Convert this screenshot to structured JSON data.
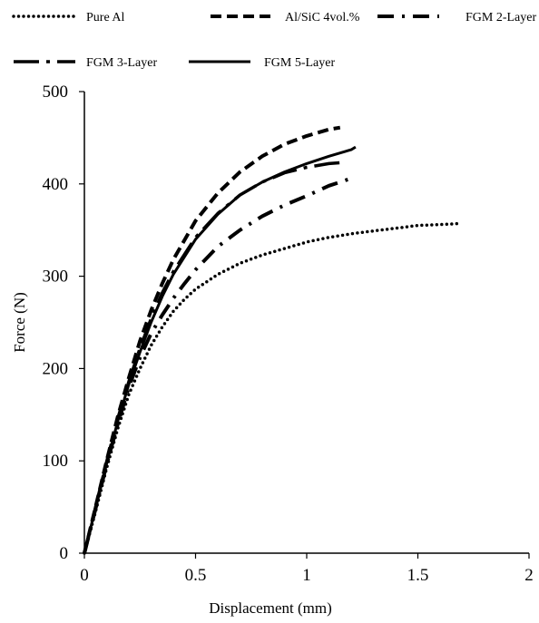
{
  "chart_data": {
    "type": "line",
    "title": "",
    "xlabel": "Displacement (mm)",
    "ylabel": "Force (N)",
    "xlim": [
      0,
      2
    ],
    "ylim": [
      0,
      500
    ],
    "xticks": [
      0,
      0.5,
      1,
      1.5,
      2
    ],
    "xtick_labels": [
      "0",
      "0.5",
      "1",
      "1.5",
      "2"
    ],
    "yticks": [
      0,
      100,
      200,
      300,
      400,
      500
    ],
    "ytick_labels": [
      "0",
      "100",
      "200",
      "300",
      "400",
      "500"
    ],
    "grid": false,
    "legend_position": "top",
    "series": [
      {
        "name": "Pure Al",
        "style": "dotted",
        "x": [
          0,
          0.05,
          0.1,
          0.15,
          0.2,
          0.25,
          0.3,
          0.35,
          0.4,
          0.45,
          0.5,
          0.6,
          0.7,
          0.8,
          0.9,
          1.0,
          1.1,
          1.2,
          1.3,
          1.4,
          1.5,
          1.6,
          1.68
        ],
        "y": [
          0,
          45,
          92,
          135,
          172,
          200,
          225,
          245,
          262,
          275,
          286,
          302,
          314,
          323,
          330,
          337,
          342,
          346,
          349,
          352,
          355,
          356,
          357
        ]
      },
      {
        "name": "Al/SiC 4vol.%",
        "style": "dashed",
        "x": [
          0,
          0.05,
          0.1,
          0.15,
          0.2,
          0.25,
          0.3,
          0.35,
          0.4,
          0.5,
          0.6,
          0.7,
          0.8,
          0.9,
          1.0,
          1.1,
          1.15
        ],
        "y": [
          0,
          50,
          100,
          148,
          190,
          230,
          263,
          292,
          318,
          360,
          390,
          413,
          430,
          443,
          452,
          459,
          461
        ]
      },
      {
        "name": "FGM 2-Layer",
        "style": "dash-dot",
        "x": [
          0,
          0.05,
          0.1,
          0.15,
          0.2,
          0.25,
          0.3,
          0.35,
          0.4,
          0.45,
          0.5,
          0.6,
          0.7,
          0.8,
          0.9,
          1.0,
          1.1,
          1.15,
          1.2
        ],
        "y": [
          0,
          48,
          96,
          140,
          180,
          212,
          238,
          258,
          276,
          292,
          307,
          332,
          350,
          365,
          377,
          387,
          398,
          402,
          406
        ]
      },
      {
        "name": "FGM 3-Layer",
        "style": "long-dash-dot",
        "x": [
          0,
          0.05,
          0.1,
          0.15,
          0.2,
          0.25,
          0.3,
          0.35,
          0.4,
          0.5,
          0.6,
          0.7,
          0.8,
          0.9,
          1.0,
          1.1,
          1.15
        ],
        "y": [
          0,
          50,
          99,
          146,
          186,
          222,
          254,
          282,
          305,
          342,
          368,
          388,
          402,
          412,
          418,
          422,
          423
        ]
      },
      {
        "name": "FGM 5-Layer",
        "style": "solid",
        "x": [
          0,
          0.05,
          0.1,
          0.15,
          0.2,
          0.25,
          0.3,
          0.35,
          0.4,
          0.5,
          0.6,
          0.7,
          0.8,
          0.9,
          1.0,
          1.1,
          1.2,
          1.22
        ],
        "y": [
          0,
          49,
          97,
          143,
          183,
          218,
          250,
          278,
          302,
          340,
          367,
          388,
          402,
          413,
          422,
          430,
          437,
          440
        ]
      }
    ]
  }
}
